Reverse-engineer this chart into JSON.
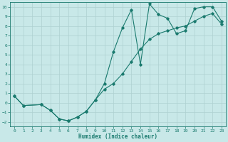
{
  "xlabel": "Humidex (Indice chaleur)",
  "bg_color": "#c8e8e8",
  "line_color": "#1a7a6e",
  "grid_color": "#aed0d0",
  "xlim": [
    -0.5,
    23.5
  ],
  "ylim": [
    -2.5,
    10.5
  ],
  "xticks": [
    0,
    1,
    2,
    3,
    4,
    5,
    6,
    7,
    8,
    9,
    10,
    11,
    12,
    13,
    14,
    15,
    16,
    17,
    18,
    19,
    20,
    21,
    22,
    23
  ],
  "yticks": [
    -2,
    -1,
    0,
    1,
    2,
    3,
    4,
    5,
    6,
    7,
    8,
    9,
    10
  ],
  "curve1_x": [
    0,
    1,
    3,
    4,
    5,
    6,
    7,
    8,
    9,
    10,
    11,
    12,
    13,
    14,
    15,
    16,
    17,
    18,
    19,
    20,
    21,
    22,
    23
  ],
  "curve1_y": [
    0.7,
    -0.3,
    -0.2,
    -0.8,
    -1.7,
    -1.9,
    -1.5,
    -0.9,
    0.3,
    2.0,
    5.3,
    7.8,
    9.7,
    4.0,
    10.3,
    9.2,
    8.8,
    7.2,
    7.5,
    9.8,
    10.0,
    10.0,
    8.5
  ],
  "curve2_x": [
    0,
    1,
    3,
    4,
    5,
    6,
    7,
    8,
    9,
    10,
    11,
    12,
    13,
    14,
    15,
    16,
    17,
    18,
    19,
    20,
    21,
    22,
    23
  ],
  "curve2_y": [
    0.7,
    -0.3,
    -0.2,
    -0.8,
    -1.7,
    -1.9,
    -1.5,
    -0.9,
    0.3,
    1.4,
    2.0,
    3.0,
    4.3,
    5.6,
    6.6,
    7.2,
    7.5,
    7.8,
    8.0,
    8.5,
    9.0,
    9.3,
    8.2
  ]
}
